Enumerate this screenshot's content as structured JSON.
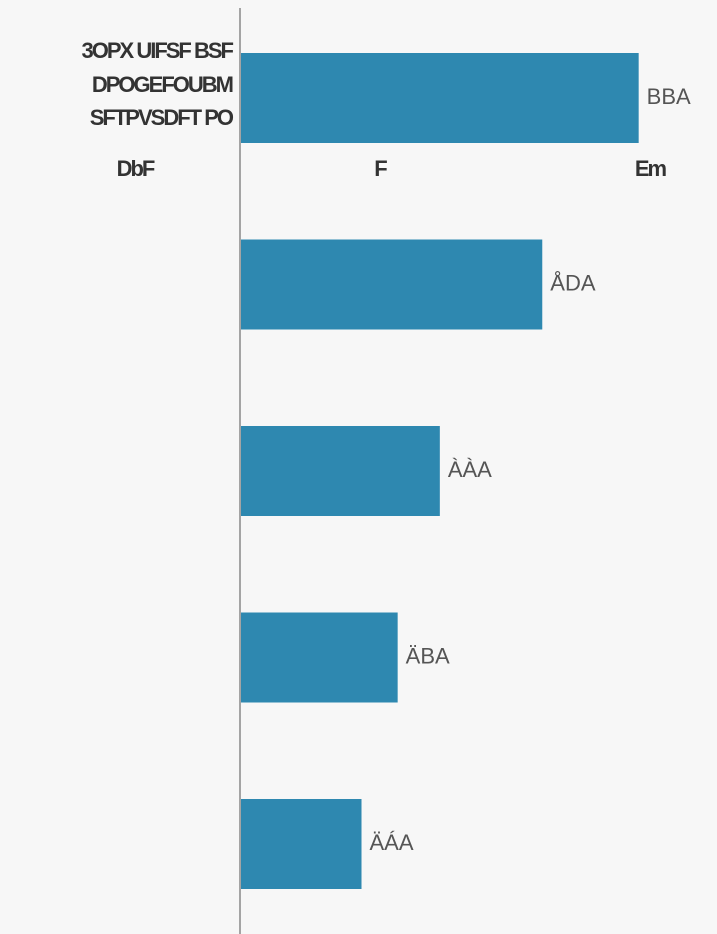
{
  "chart_data": {
    "type": "hbar",
    "title_lines": [
      "3OPX UIFSF BSF",
      "DPOGEFOUBM",
      "SFTPVSDFT PO"
    ],
    "annotations": [
      "DbF",
      "F",
      "Em"
    ],
    "categories": [
      null,
      null,
      null,
      null,
      null
    ],
    "values": [
      33,
      25,
      16.5,
      13,
      10
    ],
    "value_labels": [
      "BBA",
      "ÅDA",
      "ÀÀA",
      "ÄBA",
      "ÄÁA"
    ],
    "color": "#2e88b0",
    "xlim": [
      0,
      39.5
    ]
  }
}
